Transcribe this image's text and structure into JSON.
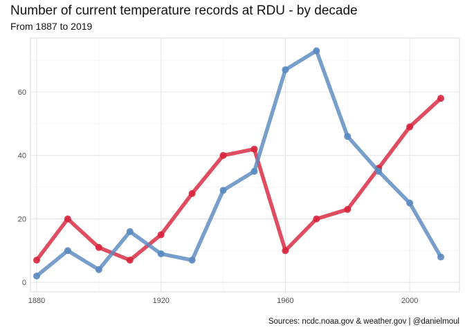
{
  "chart_data": {
    "type": "line",
    "title": "Number of current temperature records at RDU - by decade",
    "subtitle": "From 1887 to 2019",
    "caption": "Sources: ncdc.noaa.gov & weather.gov | @danielmoul",
    "xlabel": "",
    "ylabel": "",
    "x": [
      1880,
      1890,
      1900,
      1910,
      1920,
      1930,
      1940,
      1950,
      1960,
      1970,
      1980,
      1990,
      2000,
      2010
    ],
    "xlim": [
      1878,
      2016
    ],
    "ylim": [
      -3,
      77
    ],
    "x_ticks": [
      1880,
      1920,
      1960,
      2000
    ],
    "y_ticks": [
      0,
      20,
      40,
      60
    ],
    "grid": true,
    "legend": "none",
    "series": [
      {
        "color": "#d7263d",
        "values": [
          7,
          20,
          11,
          7,
          15,
          28,
          40,
          42,
          10,
          20,
          23,
          36,
          49,
          58
        ]
      },
      {
        "color": "#5a8ac0",
        "values": [
          2,
          10,
          4,
          16,
          9,
          7,
          29,
          35,
          67,
          73,
          46,
          35,
          25,
          8
        ]
      }
    ]
  }
}
